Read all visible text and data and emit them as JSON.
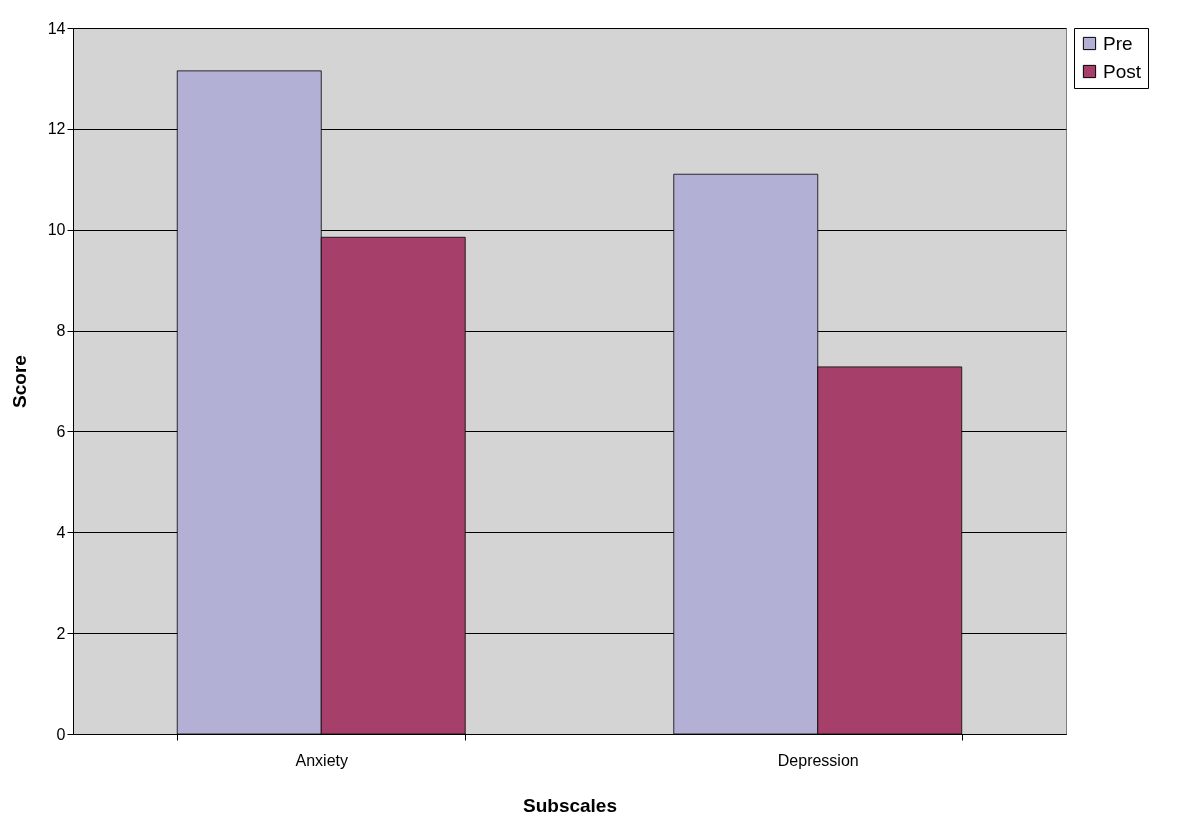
{
  "chart_data": {
    "type": "bar",
    "xlabel": "Subscales",
    "ylabel": "Score",
    "categories": [
      "Anxiety",
      "Depression"
    ],
    "series": [
      {
        "name": "Pre",
        "color": "#b3b0d6",
        "values": [
          13.15,
          11.1
        ]
      },
      {
        "name": "Post",
        "color": "#a6406b",
        "values": [
          9.85,
          7.28
        ]
      }
    ],
    "ylim": [
      0,
      14
    ],
    "yticks": [
      0,
      2,
      4,
      6,
      8,
      10,
      12,
      14
    ],
    "grid": "y",
    "legend": "right"
  }
}
